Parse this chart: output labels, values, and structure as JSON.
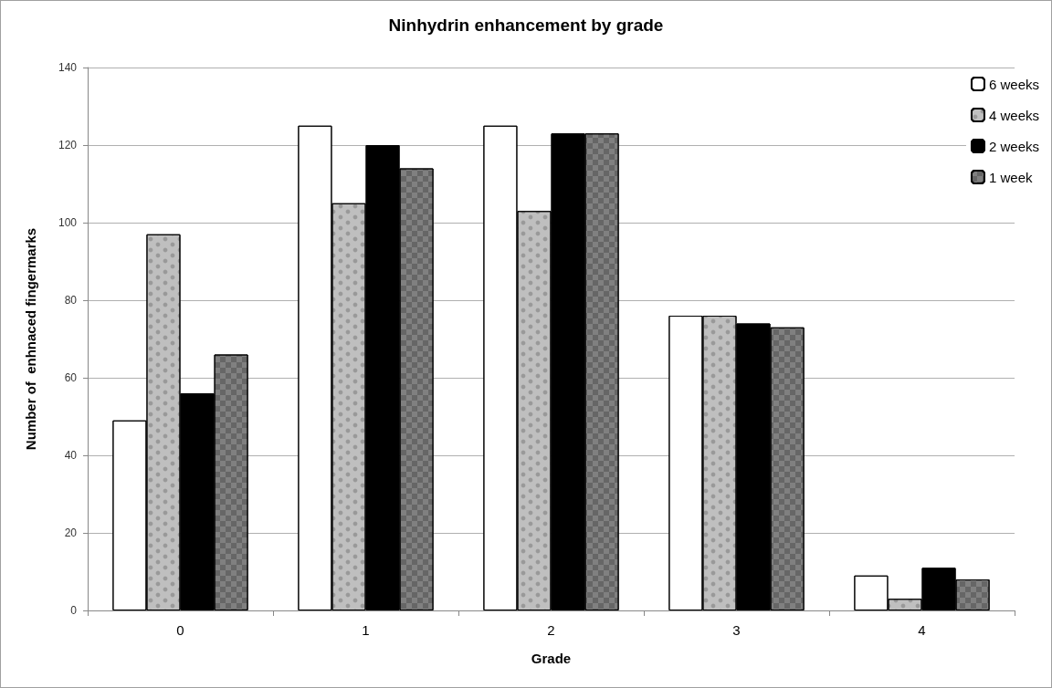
{
  "chart_data": {
    "type": "bar",
    "title": "Ninhydrin enhancement by grade",
    "xlabel": "Grade",
    "ylabel": "Number of  enhnaced fingermarks",
    "categories": [
      "0",
      "1",
      "2",
      "3",
      "4"
    ],
    "series": [
      {
        "name": "6 weeks",
        "color": "#ffffff",
        "values": [
          49,
          125,
          125,
          76,
          9
        ]
      },
      {
        "name": "4 weeks",
        "color": "#bfbfbf",
        "values": [
          97,
          105,
          103,
          76,
          3
        ]
      },
      {
        "name": "2 weeks",
        "color": "#000000",
        "values": [
          56,
          120,
          123,
          74,
          11
        ]
      },
      {
        "name": "1 week",
        "color": "#808080",
        "values": [
          66,
          114,
          123,
          73,
          8
        ]
      }
    ],
    "ylim": [
      0,
      140
    ],
    "yticks": [
      0,
      20,
      40,
      60,
      80,
      100,
      120,
      140
    ],
    "grid": "y",
    "legend": "top right"
  }
}
